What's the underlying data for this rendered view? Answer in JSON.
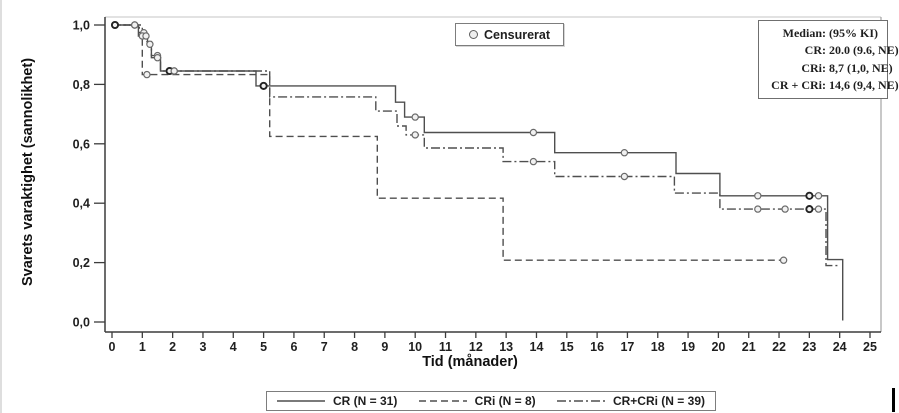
{
  "figure": {
    "censored_legend_label": "Censurerat",
    "stats_box": {
      "header": {
        "label": "Median:",
        "value": "(95% KI)"
      },
      "rows": [
        {
          "label": "CR:",
          "value": "20.0 (9.6, NE)"
        },
        {
          "label": "CRi:",
          "value": "8,7 (1,0, NE)"
        },
        {
          "label": "CR + CRi:",
          "value": "14,6 (9,4, NE)"
        }
      ]
    }
  },
  "chart_data": {
    "type": "line",
    "subtype": "kaplan-meier-step",
    "title": "",
    "xlabel": "Tid (månader)",
    "ylabel": "Svarets varaktighet (sannolikhet)",
    "xlim": [
      0,
      25
    ],
    "ylim": [
      0.0,
      1.0
    ],
    "grid": false,
    "legend_position": "bottom",
    "x_ticks": [
      "0",
      "1",
      "2",
      "3",
      "4",
      "5",
      "6",
      "7",
      "8",
      "9",
      "10",
      "11",
      "12",
      "13",
      "14",
      "15",
      "16",
      "17",
      "18",
      "19",
      "20",
      "21",
      "22",
      "23",
      "24",
      "25"
    ],
    "y_ticks": [
      {
        "v": 0.0,
        "label": "0,0"
      },
      {
        "v": 0.2,
        "label": "0,2"
      },
      {
        "v": 0.4,
        "label": "0,4"
      },
      {
        "v": 0.6,
        "label": "0,6"
      },
      {
        "v": 0.8,
        "label": "0,8"
      },
      {
        "v": 1.0,
        "label": "1,0"
      }
    ],
    "series": [
      {
        "name": "CRi (N = 8)",
        "n": 8,
        "style": "dashed",
        "median": "8,7 (1,0, NE)",
        "steps": [
          [
            0,
            1.0
          ],
          [
            1.0,
            1.0
          ],
          [
            1.0,
            0.833
          ],
          [
            5.2,
            0.833
          ],
          [
            5.2,
            0.625
          ],
          [
            8.75,
            0.625
          ],
          [
            8.75,
            0.417
          ],
          [
            12.9,
            0.417
          ],
          [
            12.9,
            0.208
          ],
          [
            22.2,
            0.208
          ]
        ],
        "censored": [
          [
            1.15,
            0.833,
            0
          ],
          [
            22.15,
            0.208,
            0
          ]
        ]
      },
      {
        "name": "CR+CRi (N = 39)",
        "n": 39,
        "style": "dashdot",
        "median": "14,6 (9,4, NE)",
        "steps": [
          [
            0,
            1.0
          ],
          [
            0.9,
            1.0
          ],
          [
            0.9,
            0.974
          ],
          [
            1.15,
            0.974
          ],
          [
            1.15,
            0.944
          ],
          [
            1.3,
            0.944
          ],
          [
            1.3,
            0.897
          ],
          [
            1.6,
            0.897
          ],
          [
            1.6,
            0.845
          ],
          [
            5.2,
            0.845
          ],
          [
            5.2,
            0.758
          ],
          [
            8.7,
            0.758
          ],
          [
            8.7,
            0.71
          ],
          [
            9.4,
            0.71
          ],
          [
            9.4,
            0.66
          ],
          [
            9.7,
            0.66
          ],
          [
            9.7,
            0.63
          ],
          [
            10.3,
            0.63
          ],
          [
            10.3,
            0.586
          ],
          [
            12.9,
            0.586
          ],
          [
            12.9,
            0.54
          ],
          [
            14.6,
            0.54
          ],
          [
            14.6,
            0.49
          ],
          [
            18.55,
            0.49
          ],
          [
            18.55,
            0.434
          ],
          [
            20.05,
            0.434
          ],
          [
            20.05,
            0.38
          ],
          [
            23.55,
            0.38
          ],
          [
            23.55,
            0.19
          ],
          [
            24.0,
            0.19
          ]
        ],
        "censored": [
          [
            0.1,
            1.0,
            0
          ],
          [
            0.75,
            1.0,
            0
          ],
          [
            1.05,
            0.974,
            0
          ],
          [
            1.5,
            0.897,
            0
          ],
          [
            1.9,
            0.845,
            0
          ],
          [
            2.05,
            0.845,
            0
          ],
          [
            10.0,
            0.63,
            0
          ],
          [
            13.9,
            0.54,
            0
          ],
          [
            16.9,
            0.49,
            0
          ],
          [
            21.3,
            0.38,
            0
          ],
          [
            22.2,
            0.38,
            0
          ],
          [
            23.0,
            0.38,
            1
          ],
          [
            23.3,
            0.38,
            0
          ]
        ]
      },
      {
        "name": "CR (N = 31)",
        "n": 31,
        "style": "solid",
        "median": "20.0 (9.6, NE)",
        "steps": [
          [
            0,
            1.0
          ],
          [
            0.87,
            1.0
          ],
          [
            0.87,
            0.963
          ],
          [
            1.17,
            0.963
          ],
          [
            1.17,
            0.935
          ],
          [
            1.3,
            0.935
          ],
          [
            1.3,
            0.89
          ],
          [
            1.6,
            0.89
          ],
          [
            1.6,
            0.845
          ],
          [
            4.75,
            0.845
          ],
          [
            4.75,
            0.795
          ],
          [
            9.35,
            0.795
          ],
          [
            9.35,
            0.74
          ],
          [
            9.65,
            0.74
          ],
          [
            9.65,
            0.69
          ],
          [
            10.3,
            0.69
          ],
          [
            10.3,
            0.638
          ],
          [
            14.6,
            0.638
          ],
          [
            14.6,
            0.57
          ],
          [
            18.6,
            0.57
          ],
          [
            18.6,
            0.5
          ],
          [
            20.05,
            0.5
          ],
          [
            20.05,
            0.425
          ],
          [
            23.6,
            0.425
          ],
          [
            23.6,
            0.21
          ],
          [
            24.1,
            0.21
          ],
          [
            24.1,
            0.005
          ]
        ],
        "censored": [
          [
            0.1,
            1.0,
            1
          ],
          [
            0.75,
            1.0,
            0
          ],
          [
            1.0,
            0.963,
            0
          ],
          [
            1.12,
            0.963,
            0
          ],
          [
            1.25,
            0.935,
            0
          ],
          [
            1.5,
            0.89,
            0
          ],
          [
            1.9,
            0.845,
            1
          ],
          [
            2.05,
            0.845,
            0
          ],
          [
            5.0,
            0.795,
            1
          ],
          [
            10.0,
            0.69,
            0
          ],
          [
            13.9,
            0.638,
            0
          ],
          [
            16.9,
            0.57,
            0
          ],
          [
            21.3,
            0.425,
            0
          ],
          [
            23.0,
            0.425,
            1
          ],
          [
            23.3,
            0.425,
            0
          ]
        ]
      }
    ],
    "legend_items": [
      {
        "label": "CR (N = 31)",
        "style": "solid"
      },
      {
        "label": "CRi (N = 8)",
        "style": "dashed"
      },
      {
        "label": "CR+CRi (N = 39)",
        "style": "dashdot"
      }
    ]
  },
  "colors": {
    "line": "#4f4f4f",
    "axis": "#3c3c3c",
    "axis_top": "#d9d9d9",
    "axis_right": "#9a9a9a",
    "censor_stroke": "#6a6a6a",
    "censor_bold_stroke": "#232323",
    "censor_fill": "#f1f1f1",
    "text": "#1f1f1f"
  }
}
